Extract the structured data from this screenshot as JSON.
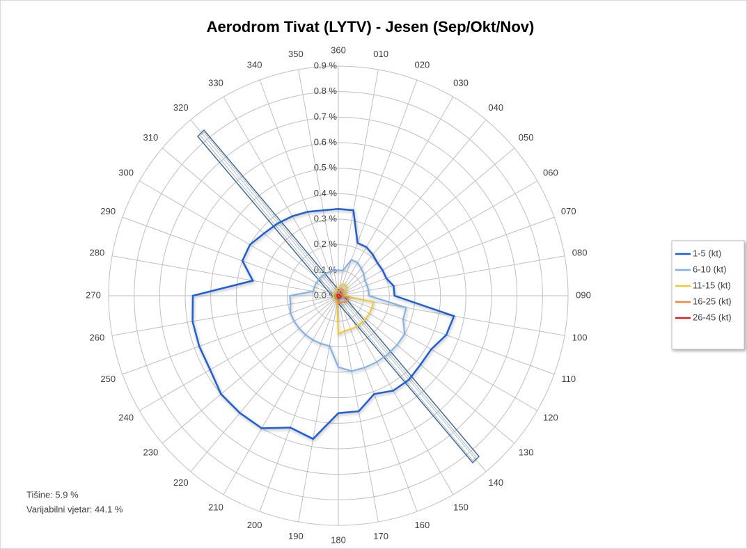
{
  "chart_data": {
    "type": "radar",
    "title": "Aerodrom Tivat (LYTV) - Jesen (Sep/Okt/Nov)",
    "categories": [
      "360",
      "010",
      "020",
      "030",
      "040",
      "050",
      "060",
      "070",
      "080",
      "090",
      "100",
      "110",
      "120",
      "130",
      "140",
      "150",
      "160",
      "170",
      "180",
      "190",
      "200",
      "210",
      "220",
      "230",
      "240",
      "250",
      "260",
      "270",
      "280",
      "290",
      "300",
      "310",
      "320",
      "330",
      "340",
      "350"
    ],
    "ylim": [
      0,
      0.9
    ],
    "yticks": [
      {
        "value": 0,
        "label": "0.0 %"
      },
      {
        "value": 0.1,
        "label": "0.1 %"
      },
      {
        "value": 0.2,
        "label": "0.2 %"
      },
      {
        "value": 0.3,
        "label": "0.3 %"
      },
      {
        "value": 0.4,
        "label": "0.4 %"
      },
      {
        "value": 0.5,
        "label": "0.5 %"
      },
      {
        "value": 0.6,
        "label": "0.6 %"
      },
      {
        "value": 0.7,
        "label": "0.7 %"
      },
      {
        "value": 0.8,
        "label": "0.8 %"
      },
      {
        "value": 0.9,
        "label": "0.9 %"
      }
    ],
    "grid": true,
    "legend": "right",
    "series": [
      {
        "name": "1-5 (kt)",
        "color": "#1f5fd1",
        "values": [
          0.34,
          0.34,
          0.22,
          0.22,
          0.21,
          0.2,
          0.2,
          0.2,
          0.22,
          0.22,
          0.46,
          0.45,
          0.42,
          0.42,
          0.43,
          0.43,
          0.41,
          0.46,
          0.46,
          0.57,
          0.55,
          0.6,
          0.6,
          0.6,
          0.58,
          0.58,
          0.58,
          0.57,
          0.34,
          0.4,
          0.4,
          0.38,
          0.37,
          0.36,
          0.35,
          0.34
        ]
      },
      {
        "name": "6-10 (kt)",
        "color": "#7fb0e8",
        "values": [
          0.1,
          0.1,
          0.15,
          0.15,
          0.14,
          0.13,
          0.12,
          0.12,
          0.12,
          0.12,
          0.27,
          0.27,
          0.3,
          0.3,
          0.3,
          0.3,
          0.3,
          0.3,
          0.28,
          0.2,
          0.2,
          0.2,
          0.2,
          0.2,
          0.2,
          0.2,
          0.19,
          0.19,
          0.1,
          0.1,
          0.1,
          0.1,
          0.1,
          0.1,
          0.1,
          0.1
        ]
      },
      {
        "name": "11-15 (kt)",
        "color": "#f2c830",
        "values": [
          0.03,
          0.04,
          0.05,
          0.05,
          0.05,
          0.04,
          0.03,
          0.03,
          0.02,
          0.02,
          0.14,
          0.14,
          0.14,
          0.14,
          0.14,
          0.14,
          0.14,
          0.14,
          0.15,
          0.03,
          0.02,
          0.02,
          0.02,
          0.02,
          0.02,
          0.02,
          0.02,
          0.02,
          0.02,
          0.02,
          0.02,
          0.02,
          0.02,
          0.02,
          0.02,
          0.03
        ]
      },
      {
        "name": "16-25 (kt)",
        "color": "#f0883a",
        "values": [
          0.01,
          0.02,
          0.03,
          0.03,
          0.03,
          0.02,
          0.02,
          0.01,
          0.01,
          0.01,
          0.04,
          0.04,
          0.04,
          0.04,
          0.03,
          0.03,
          0.03,
          0.03,
          0.03,
          0.01,
          0.01,
          0.01,
          0.01,
          0.01,
          0.01,
          0.01,
          0.01,
          0.01,
          0.01,
          0.01,
          0.01,
          0.01,
          0.01,
          0.01,
          0.01,
          0.01
        ]
      },
      {
        "name": "26-45 (kt)",
        "color": "#d42020",
        "values": [
          0.005,
          0.005,
          0.005,
          0.005,
          0.005,
          0.005,
          0.005,
          0.005,
          0.005,
          0.005,
          0.01,
          0.01,
          0.01,
          0.01,
          0.01,
          0.01,
          0.01,
          0.01,
          0.01,
          0.005,
          0.005,
          0.005,
          0.005,
          0.005,
          0.005,
          0.005,
          0.005,
          0.005,
          0.005,
          0.005,
          0.005,
          0.005,
          0.005,
          0.005,
          0.005,
          0.005
        ]
      }
    ],
    "annotations": [
      "Tišine: 5.9 %",
      "Varijabilni vjetar: 44.1 %"
    ]
  }
}
